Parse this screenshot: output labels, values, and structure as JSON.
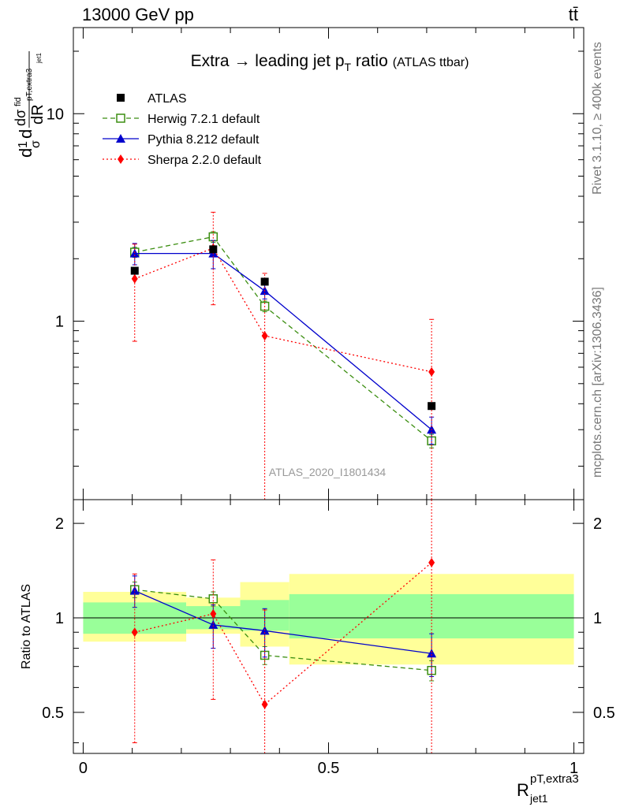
{
  "header": {
    "left_title": "13000 GeV pp",
    "right_title": "tt̄"
  },
  "side_texts": {
    "rivet": "Rivet 3.1.10, ≥ 400k events",
    "mcplots": "mcplots.cern.ch [arXiv:1306.3436]"
  },
  "chart_data": {
    "type": "line",
    "title": "Extra → leading jet p",
    "title_sub": "T",
    "title_tail": " ratio",
    "title_small": "(ATLAS ttbar)",
    "analysis_id": "ATLAS_2020_I1801434",
    "xlabel": {
      "base": "R",
      "sub": "jet1",
      "sup": "pT,extra3"
    },
    "ylabel_main": "1/σ dσ^fid / dR^pT,extra3_jet1",
    "ylabel_main_parts": {
      "d1": "d",
      "one": "1",
      "sigma": "σ",
      "d2": "d",
      "dsigma": "dσ",
      "fid": "fid",
      "dR": "dR",
      "pT": "pT,extra3",
      "jet1": "jet1"
    },
    "ylabel_ratio": "Ratio to ATLAS",
    "xlim": [
      -0.02,
      1.02
    ],
    "ylim_main": [
      0.138,
      26
    ],
    "ylim_ratio": [
      0.37,
      2.38
    ],
    "yscale": "log",
    "x_ticks": [
      0,
      0.5,
      1
    ],
    "x_tick_labels": [
      "0",
      "0.5",
      "1"
    ],
    "y_ticks_main": [
      1,
      10
    ],
    "y_tick_labels_main": [
      "1",
      "10"
    ],
    "y_ticks_ratio": [
      0.5,
      1,
      2
    ],
    "y_tick_labels_ratio": [
      "0.5",
      "1",
      "2"
    ],
    "legend_position": "top-left",
    "bins": [
      [
        0,
        0.21
      ],
      [
        0.21,
        0.32
      ],
      [
        0.32,
        0.42
      ],
      [
        0.42,
        1.0
      ]
    ],
    "bin_centers": [
      0.105,
      0.265,
      0.37,
      0.71
    ],
    "band_inner": [
      [
        0.89,
        1.12
      ],
      [
        0.92,
        1.09
      ],
      [
        0.91,
        1.14
      ],
      [
        0.86,
        1.19
      ]
    ],
    "band_outer": [
      [
        0.84,
        1.21
      ],
      [
        0.89,
        1.16
      ],
      [
        0.81,
        1.3
      ],
      [
        0.71,
        1.38
      ]
    ],
    "series": [
      {
        "name": "ATLAS",
        "color": "#000000",
        "marker": "square-filled",
        "line": "none",
        "values": [
          1.75,
          2.22,
          1.55,
          0.39
        ],
        "ratio": [
          1,
          1,
          1,
          1
        ]
      },
      {
        "name": "Herwig 7.2.1 default",
        "color": "#3b8e10",
        "marker": "square-open",
        "line": "dashed",
        "values": [
          2.15,
          2.55,
          1.18,
          0.265
        ],
        "err": [
          0.12,
          0.15,
          0.07,
          0.02
        ],
        "ratio": [
          1.23,
          1.15,
          0.76,
          0.68
        ],
        "ratio_err": [
          0.07,
          0.06,
          0.05,
          0.05
        ]
      },
      {
        "name": "Pythia 8.212 default",
        "color": "#0000cc",
        "marker": "triangle-filled",
        "line": "solid",
        "values": [
          2.12,
          2.12,
          1.4,
          0.3
        ],
        "err": [
          0.25,
          0.33,
          0.12,
          0.045
        ],
        "ratio": [
          1.22,
          0.95,
          0.91,
          0.77
        ],
        "ratio_err": [
          0.14,
          0.15,
          0.16,
          0.12
        ]
      },
      {
        "name": "Sherpa 2.2.0 default",
        "color": "#ff0000",
        "marker": "diamond-filled",
        "line": "dotted",
        "values": [
          1.6,
          2.25,
          0.85,
          0.57
        ],
        "err_low": [
          0.8,
          1.05,
          0.85,
          0.57
        ],
        "err_high": [
          0.75,
          1.1,
          0.85,
          0.45
        ],
        "ratio": [
          0.9,
          1.03,
          0.53,
          1.5
        ],
        "ratio_err_low": [
          0.5,
          0.48,
          0.53,
          1.5
        ],
        "ratio_err_high": [
          0.48,
          0.5,
          0.53,
          1.5
        ]
      }
    ]
  }
}
